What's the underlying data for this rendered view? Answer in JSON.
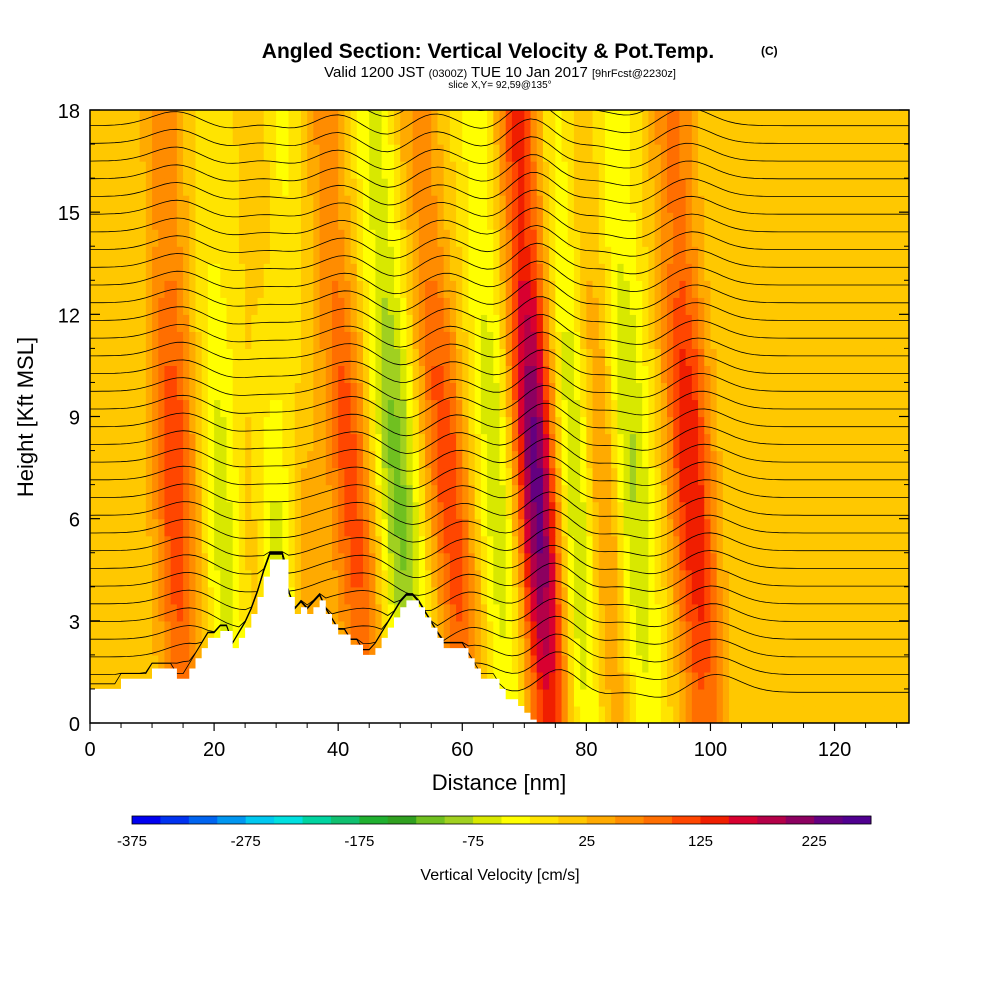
{
  "header": {
    "title": "Angled Section: Vertical Velocity & Pot.Temp.",
    "title_suffix": "(C)",
    "valid_prefix": "Valid 1200 JST",
    "valid_zulu": "(0300Z)",
    "valid_date": "TUE 10 Jan 2017",
    "valid_fcst": "[9hrFcst@2230z]",
    "slice": "slice X,Y= 92,59@135°"
  },
  "chart_data": {
    "type": "heatmap",
    "title": "Angled Section: Vertical Velocity & Pot.Temp. (C)",
    "xlabel": "Distance [nm]",
    "ylabel": "Height [Kft MSL]",
    "xlim": [
      0,
      132
    ],
    "ylim": [
      0,
      18
    ],
    "xticks": [
      0,
      20,
      40,
      60,
      80,
      100,
      120
    ],
    "yticks": [
      0,
      3,
      6,
      9,
      12,
      15,
      18
    ],
    "colorbar": {
      "label": "Vertical Velocity [cm/s]",
      "min": -375,
      "max": 275,
      "step": 25,
      "tick_labels": [
        "-375",
        "-275",
        "-175",
        "-75",
        "25",
        "125",
        "225"
      ],
      "colors": [
        "#0000f0",
        "#0032f0",
        "#0064f0",
        "#0096f0",
        "#00c8f0",
        "#00e0e0",
        "#00d4a0",
        "#10c070",
        "#20b030",
        "#30a020",
        "#70c020",
        "#a0d020",
        "#d8e800",
        "#ffff00",
        "#ffe400",
        "#ffc800",
        "#ffaa00",
        "#ff8c00",
        "#ff6e00",
        "#ff4600",
        "#f01e00",
        "#d80030",
        "#b40048",
        "#8c0060",
        "#640080",
        "#500090"
      ]
    },
    "updraft_bands": [
      {
        "x_bottom": 15,
        "x_top": 12,
        "w_cm_s": 120
      },
      {
        "x_bottom": 26,
        "x_top": 20,
        "w_cm_s": 110
      },
      {
        "x_bottom": 36,
        "x_top": 28,
        "w_cm_s": 100
      },
      {
        "x_bottom": 45,
        "x_top": 38,
        "w_cm_s": 115
      },
      {
        "x_bottom": 61,
        "x_top": 53,
        "w_cm_s": 120
      },
      {
        "x_bottom": 74,
        "x_top": 69,
        "w_cm_s": 245
      },
      {
        "x_bottom": 85,
        "x_top": 79,
        "w_cm_s": 100
      },
      {
        "x_bottom": 99,
        "x_top": 94,
        "w_cm_s": 150
      }
    ],
    "downdraft_bands": [
      {
        "x_bottom": 24,
        "x_top": 20,
        "w_cm_s": -150
      },
      {
        "x_bottom": 32,
        "x_top": 30,
        "w_cm_s": -120
      },
      {
        "x_bottom": 52,
        "x_top": 46,
        "w_cm_s": -110
      },
      {
        "x_bottom": 68,
        "x_top": 63,
        "w_cm_s": -80
      },
      {
        "x_bottom": 80,
        "x_top": 76,
        "w_cm_s": -110
      },
      {
        "x_bottom": 89,
        "x_top": 84,
        "w_cm_s": -95
      }
    ],
    "terrain_profile": {
      "x_nm": [
        0,
        1,
        2,
        3,
        4,
        5,
        6,
        7,
        8,
        9,
        10,
        11,
        12,
        13,
        14,
        15,
        16,
        17,
        18,
        19,
        20,
        21,
        22,
        23,
        24,
        25,
        26,
        27,
        28,
        29,
        30,
        31,
        32,
        33,
        34,
        35,
        36,
        37,
        38,
        39,
        40,
        41,
        42,
        43,
        44,
        45,
        46,
        47,
        48,
        49,
        50,
        51,
        52,
        53,
        54,
        55,
        56,
        57,
        58,
        59,
        60,
        61,
        62,
        63,
        64,
        65,
        66,
        67,
        68,
        69,
        70,
        71,
        72
      ],
      "height_kft": [
        1.0,
        1.0,
        1.0,
        1.0,
        1.0,
        1.3,
        1.3,
        1.3,
        1.3,
        1.3,
        1.6,
        1.6,
        1.6,
        1.6,
        1.3,
        1.3,
        1.6,
        1.9,
        2.2,
        2.5,
        2.5,
        2.7,
        2.7,
        2.2,
        2.5,
        2.8,
        3.2,
        3.7,
        4.3,
        4.8,
        4.8,
        4.8,
        3.7,
        3.2,
        3.4,
        3.2,
        3.4,
        3.6,
        3.2,
        2.9,
        2.6,
        2.6,
        2.3,
        2.3,
        2.0,
        2.0,
        2.2,
        2.5,
        2.8,
        3.1,
        3.4,
        3.6,
        3.6,
        3.4,
        3.1,
        2.8,
        2.5,
        2.2,
        2.2,
        2.2,
        2.2,
        1.9,
        1.6,
        1.3,
        1.3,
        1.3,
        1.0,
        0.7,
        0.7,
        0.5,
        0.3,
        0.1,
        0.0
      ]
    },
    "isentropes": {
      "label": "Pot.Temp. (C)",
      "count": 34,
      "range_c": [
        10,
        44
      ]
    }
  }
}
